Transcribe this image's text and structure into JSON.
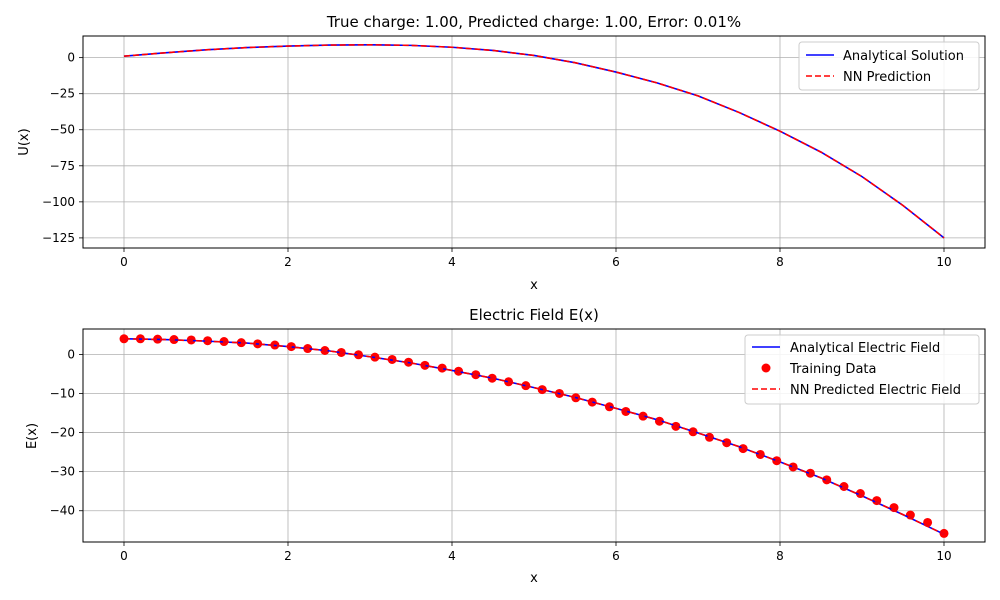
{
  "chart_data": [
    {
      "type": "line",
      "title": "True charge: 1.00, Predicted charge: 1.00, Error: 0.01%",
      "xlabel": "x",
      "ylabel": "U(x)",
      "xlim": [
        -0.5,
        10.5
      ],
      "ylim": [
        -132,
        15
      ],
      "xticks": [
        0,
        2,
        4,
        6,
        8,
        10
      ],
      "xtick_labels": [
        "0",
        "2",
        "4",
        "6",
        "8",
        "10"
      ],
      "yticks": [
        0,
        -25,
        -50,
        -75,
        -100,
        -125
      ],
      "ytick_labels": [
        "0",
        "−25",
        "−50",
        "−75",
        "−100",
        "−125"
      ],
      "grid": true,
      "legend_placement": "top-right",
      "legend": [
        {
          "label": "Analytical Solution",
          "style": "line",
          "color": "#0000ff"
        },
        {
          "label": "NN Prediction",
          "style": "dashed",
          "color": "#ff0000"
        }
      ],
      "series": [
        {
          "name": "Analytical Solution",
          "color": "#0000ff",
          "style": "solid",
          "x": [
            0,
            0.5,
            1,
            1.5,
            2,
            2.5,
            3,
            3.5,
            4,
            4.5,
            5,
            5.5,
            6,
            6.5,
            7,
            7.5,
            8,
            8.5,
            9,
            9.5,
            10
          ],
          "y": [
            1,
            3.35,
            5.4,
            7.0,
            8.0,
            8.7,
            8.9,
            8.5,
            7.2,
            5.0,
            1.5,
            -3.5,
            -10.0,
            -17.5,
            -26.5,
            -38.0,
            -51.0,
            -65.5,
            -82.5,
            -102.5,
            -125.0
          ]
        },
        {
          "name": "NN Prediction",
          "color": "#ff0000",
          "style": "dashed",
          "x": [
            0,
            0.5,
            1,
            1.5,
            2,
            2.5,
            3,
            3.5,
            4,
            4.5,
            5,
            5.5,
            6,
            6.5,
            7,
            7.5,
            8,
            8.5,
            9,
            9.5,
            10
          ],
          "y": [
            1,
            3.35,
            5.4,
            7.0,
            8.0,
            8.7,
            8.9,
            8.5,
            7.2,
            5.0,
            1.5,
            -3.5,
            -10.0,
            -17.5,
            -26.5,
            -38.0,
            -51.0,
            -65.5,
            -82.5,
            -102.5,
            -125.0
          ]
        }
      ]
    },
    {
      "type": "line",
      "title": "Electric Field E(x)",
      "xlabel": "x",
      "ylabel": "E(x)",
      "xlim": [
        -0.5,
        10.5
      ],
      "ylim": [
        -48,
        6.5
      ],
      "xticks": [
        0,
        2,
        4,
        6,
        8,
        10
      ],
      "xtick_labels": [
        "0",
        "2",
        "4",
        "6",
        "8",
        "10"
      ],
      "yticks": [
        0,
        -10,
        -20,
        -30,
        -40
      ],
      "ytick_labels": [
        "0",
        "−10",
        "−20",
        "−30",
        "−40"
      ],
      "grid": true,
      "legend_placement": "top-right",
      "legend": [
        {
          "label": "Analytical Electric Field",
          "style": "line",
          "color": "#0000ff"
        },
        {
          "label": "Training Data",
          "style": "marker",
          "color": "#ff0000"
        },
        {
          "label": "NN Predicted Electric Field",
          "style": "dashed",
          "color": "#ff0000"
        }
      ],
      "series": [
        {
          "name": "Analytical Electric Field",
          "color": "#0000ff",
          "style": "solid",
          "x": [
            0,
            0.5,
            1,
            1.5,
            2,
            2.5,
            3,
            3.5,
            4,
            4.5,
            5,
            5.5,
            6,
            6.5,
            7,
            7.5,
            8,
            8.5,
            9,
            9.5,
            10
          ],
          "y": [
            4.0,
            3.8,
            3.4,
            2.9,
            2.0,
            0.9,
            -0.6,
            -2.2,
            -4.1,
            -6.1,
            -8.5,
            -11.0,
            -13.8,
            -16.7,
            -20.1,
            -23.6,
            -27.5,
            -31.6,
            -36.2,
            -41.0,
            -46.0
          ]
        },
        {
          "name": "NN Predicted Electric Field",
          "color": "#ff0000",
          "style": "dashed",
          "x": [
            0,
            0.5,
            1,
            1.5,
            2,
            2.5,
            3,
            3.5,
            4,
            4.5,
            5,
            5.5,
            6,
            6.5,
            7,
            7.5,
            8,
            8.5,
            9,
            9.5,
            10
          ],
          "y": [
            4.0,
            3.8,
            3.4,
            2.9,
            2.0,
            0.9,
            -0.6,
            -2.2,
            -4.1,
            -6.1,
            -8.5,
            -11.0,
            -13.8,
            -16.7,
            -20.1,
            -23.6,
            -27.5,
            -31.6,
            -36.2,
            -41.0,
            -46.0
          ]
        },
        {
          "name": "Training Data",
          "color": "#ff0000",
          "style": "scatter",
          "x": [
            0.0,
            0.2,
            0.41,
            0.61,
            0.82,
            1.02,
            1.22,
            1.43,
            1.63,
            1.84,
            2.04,
            2.24,
            2.45,
            2.65,
            2.86,
            3.06,
            3.27,
            3.47,
            3.67,
            3.88,
            4.08,
            4.29,
            4.49,
            4.69,
            4.9,
            5.1,
            5.31,
            5.51,
            5.71,
            5.92,
            6.12,
            6.33,
            6.53,
            6.73,
            6.94,
            7.14,
            7.35,
            7.55,
            7.76,
            7.96,
            8.16,
            8.37,
            8.57,
            8.78,
            8.98,
            9.18,
            9.39,
            9.59,
            9.8,
            10.0
          ],
          "y": [
            4.0,
            4.0,
            3.9,
            3.8,
            3.7,
            3.5,
            3.3,
            3.0,
            2.7,
            2.4,
            2.0,
            1.5,
            1.0,
            0.5,
            -0.1,
            -0.7,
            -1.3,
            -2.0,
            -2.8,
            -3.5,
            -4.3,
            -5.2,
            -6.1,
            -7.0,
            -8.0,
            -9.0,
            -10.0,
            -11.1,
            -12.2,
            -13.4,
            -14.6,
            -15.8,
            -17.1,
            -18.4,
            -19.8,
            -21.2,
            -22.6,
            -24.1,
            -25.6,
            -27.2,
            -28.8,
            -30.4,
            -32.1,
            -33.8,
            -35.6,
            -37.4,
            -39.2,
            -41.1,
            -43.0,
            -45.8
          ]
        }
      ]
    }
  ]
}
